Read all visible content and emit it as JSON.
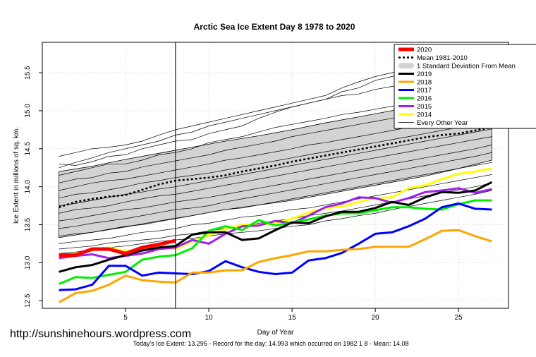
{
  "chart_data": {
    "type": "line",
    "title": "Arctic Sea Ice Extent Day 8 1978 to 2020",
    "xlabel": "Day of Year",
    "ylabel": "Ice Extent in millions of sq. km.",
    "xlim": [
      0,
      28
    ],
    "ylim": [
      12.4,
      15.9
    ],
    "xticks": [
      5,
      10,
      15,
      20,
      25
    ],
    "yticks": [
      12.5,
      13.0,
      13.5,
      14.0,
      14.5,
      15.0,
      15.5
    ],
    "ytick_labels": [
      "12.5",
      "13.0",
      "13.5",
      "14.0",
      "14.5",
      "15.0",
      "15.5"
    ],
    "current_day": 8,
    "std_band": {
      "name": "1 Standard Deviation From Mean",
      "x": [
        1,
        3,
        5,
        7,
        9,
        11,
        13,
        15,
        17,
        19,
        21,
        23,
        25,
        27
      ],
      "upper": [
        14.2,
        14.27,
        14.36,
        14.44,
        14.52,
        14.6,
        14.67,
        14.75,
        14.84,
        14.92,
        15.0,
        15.08,
        15.16,
        15.27
      ],
      "lower": [
        13.33,
        13.4,
        13.47,
        13.55,
        13.62,
        13.7,
        13.76,
        13.82,
        13.9,
        13.98,
        14.06,
        14.14,
        14.24,
        14.35
      ]
    },
    "mean_series": {
      "name": "Mean 1981-2010",
      "x": [
        1,
        2,
        3,
        4,
        5,
        6,
        7,
        8,
        9,
        10,
        11,
        12,
        13,
        14,
        15,
        16,
        17,
        18,
        19,
        20,
        21,
        22,
        23,
        24,
        25,
        26,
        27
      ],
      "values": [
        13.73,
        13.8,
        13.84,
        13.87,
        13.89,
        13.96,
        14.03,
        14.08,
        14.1,
        14.12,
        14.15,
        14.2,
        14.24,
        14.28,
        14.33,
        14.37,
        14.41,
        14.45,
        14.49,
        14.53,
        14.57,
        14.61,
        14.65,
        14.68,
        14.7,
        14.74,
        14.78
      ]
    },
    "background_series": [
      {
        "name": "bg-1",
        "values": [
          14.3,
          14.28,
          14.33,
          14.4,
          14.42,
          14.5,
          14.55,
          14.6,
          14.62,
          14.7,
          14.75,
          14.8,
          14.9,
          14.98,
          15.05,
          15.1,
          15.15,
          15.25,
          15.3,
          15.4,
          15.45,
          15.52,
          15.58,
          15.62,
          15.65,
          15.68,
          15.7
        ]
      },
      {
        "name": "bg-2",
        "values": [
          14.25,
          14.32,
          14.38,
          14.45,
          14.5,
          14.55,
          14.6,
          14.68,
          14.72,
          14.8,
          14.85,
          14.9,
          14.95,
          15.0,
          15.05,
          15.1,
          15.15,
          15.2,
          15.22,
          15.28,
          15.32,
          15.35,
          15.4,
          15.42,
          15.45,
          15.48,
          15.5
        ]
      },
      {
        "name": "bg-3",
        "values": [
          14.15,
          14.2,
          14.25,
          14.3,
          14.3,
          14.35,
          14.42,
          14.45,
          14.5,
          14.58,
          14.62,
          14.66,
          14.72,
          14.78,
          14.82,
          14.86,
          14.9,
          14.95,
          14.98,
          15.02,
          15.06,
          15.1,
          15.14,
          15.18,
          15.22,
          15.25,
          15.28
        ]
      },
      {
        "name": "bg-4",
        "values": [
          14.05,
          14.1,
          14.12,
          14.18,
          14.2,
          14.26,
          14.3,
          14.34,
          14.38,
          14.42,
          14.48,
          14.52,
          14.56,
          14.6,
          14.66,
          14.7,
          14.74,
          14.78,
          14.82,
          14.86,
          14.9,
          14.95,
          15.0,
          15.05,
          15.1,
          15.14,
          15.2
        ]
      },
      {
        "name": "bg-5",
        "values": [
          13.95,
          14.0,
          14.05,
          14.08,
          14.1,
          14.14,
          14.18,
          14.22,
          14.26,
          14.3,
          14.35,
          14.38,
          14.42,
          14.46,
          14.5,
          14.55,
          14.58,
          14.62,
          14.66,
          14.7,
          14.74,
          14.78,
          14.82,
          14.86,
          14.9,
          14.95,
          15.0
        ]
      },
      {
        "name": "bg-6",
        "values": [
          13.85,
          13.9,
          13.92,
          13.96,
          14.0,
          14.05,
          14.08,
          14.12,
          14.15,
          14.18,
          14.22,
          14.26,
          14.3,
          14.34,
          14.38,
          14.42,
          14.46,
          14.5,
          14.54,
          14.58,
          14.62,
          14.66,
          14.7,
          14.74,
          14.78,
          14.82,
          14.86
        ]
      },
      {
        "name": "bg-7",
        "values": [
          13.75,
          13.78,
          13.82,
          13.86,
          13.9,
          13.93,
          13.97,
          14.0,
          14.04,
          14.08,
          14.12,
          14.16,
          14.2,
          14.24,
          14.28,
          14.32,
          14.36,
          14.4,
          14.44,
          14.48,
          14.52,
          14.56,
          14.6,
          14.64,
          14.68,
          14.72,
          14.76
        ]
      },
      {
        "name": "bg-8",
        "values": [
          13.65,
          13.7,
          13.72,
          13.75,
          13.8,
          13.84,
          13.88,
          13.9,
          13.94,
          13.98,
          14.02,
          14.06,
          14.1,
          14.14,
          14.18,
          14.22,
          14.26,
          14.3,
          14.34,
          14.38,
          14.42,
          14.46,
          14.5,
          14.54,
          14.58,
          14.62,
          14.66
        ]
      },
      {
        "name": "bg-9",
        "values": [
          13.55,
          13.58,
          13.62,
          13.66,
          13.7,
          13.72,
          13.76,
          13.8,
          13.83,
          13.86,
          13.9,
          13.94,
          13.98,
          14.02,
          14.06,
          14.1,
          14.14,
          14.18,
          14.22,
          14.26,
          14.3,
          14.34,
          14.38,
          14.42,
          14.46,
          14.5,
          14.55
        ]
      },
      {
        "name": "bg-10",
        "values": [
          13.45,
          13.48,
          13.52,
          13.55,
          13.58,
          13.62,
          13.66,
          13.7,
          13.72,
          13.75,
          13.8,
          13.84,
          13.88,
          13.92,
          13.96,
          14.0,
          14.04,
          14.08,
          14.12,
          14.16,
          14.2,
          14.24,
          14.28,
          14.32,
          14.36,
          14.4,
          14.45
        ]
      },
      {
        "name": "bg-11",
        "values": [
          13.35,
          13.38,
          13.4,
          13.44,
          13.48,
          13.5,
          13.54,
          13.58,
          13.62,
          13.66,
          13.7,
          13.72,
          13.76,
          13.8,
          13.84,
          13.88,
          13.92,
          13.96,
          14.0,
          14.04,
          14.08,
          14.12,
          14.16,
          14.2,
          14.24,
          14.28,
          14.32
        ]
      },
      {
        "name": "bg-12",
        "values": [
          13.25,
          13.28,
          13.3,
          13.32,
          13.36,
          13.4,
          13.42,
          13.45,
          13.5,
          13.52,
          13.56,
          13.6,
          13.62,
          13.66,
          13.7,
          13.72,
          13.76,
          13.8,
          13.84,
          13.88,
          13.92,
          13.96,
          14.0,
          14.04,
          14.08,
          14.12,
          14.16
        ]
      },
      {
        "name": "bg-13",
        "values": [
          13.18,
          13.2,
          13.22,
          13.26,
          13.28,
          13.3,
          13.32,
          13.36,
          13.38,
          13.42,
          13.45,
          13.48,
          13.52,
          13.55,
          13.58,
          13.62,
          13.65,
          13.68,
          13.72,
          13.76,
          13.8,
          13.84,
          13.88,
          13.92,
          13.96,
          14.0,
          14.05
        ]
      },
      {
        "name": "bg-14",
        "values": [
          13.12,
          13.14,
          13.18,
          13.2,
          13.22,
          13.25,
          13.28,
          13.3,
          13.32,
          13.35,
          13.38,
          13.4,
          13.42,
          13.45,
          13.48,
          13.5,
          13.55,
          13.58,
          13.62,
          13.65,
          13.7,
          13.74,
          13.78,
          13.82,
          13.86,
          13.9,
          13.95
        ]
      },
      {
        "name": "bg-15",
        "values": [
          14.4,
          14.45,
          14.5,
          14.52,
          14.55,
          14.6,
          14.68,
          14.75,
          14.8,
          14.85,
          14.9,
          14.95,
          15.0,
          15.05,
          15.1,
          15.15,
          15.2,
          15.3,
          15.38,
          15.45,
          15.5,
          15.55,
          15.6,
          15.64,
          15.66,
          15.68,
          15.7
        ]
      }
    ],
    "series": [
      {
        "name": "2020",
        "color": "#ff0000",
        "x": [
          1,
          2,
          3,
          4,
          5,
          6,
          7,
          8
        ],
        "values": [
          13.1,
          13.1,
          13.18,
          13.18,
          13.12,
          13.2,
          13.24,
          13.29
        ]
      },
      {
        "name": "2019",
        "color": "#000000",
        "x": [
          1,
          2,
          3,
          4,
          5,
          6,
          7,
          8,
          9,
          10,
          11,
          12,
          13,
          14,
          15,
          16,
          17,
          18,
          19,
          20,
          21,
          22,
          23,
          24,
          25,
          26,
          27
        ],
        "values": [
          12.88,
          12.94,
          12.97,
          13.04,
          13.1,
          13.16,
          13.2,
          13.22,
          13.37,
          13.4,
          13.4,
          13.3,
          13.32,
          13.43,
          13.53,
          13.52,
          13.61,
          13.67,
          13.67,
          13.72,
          13.8,
          13.76,
          13.86,
          13.93,
          13.92,
          13.95,
          14.06
        ]
      },
      {
        "name": "2018",
        "color": "#ffa500",
        "x": [
          1,
          2,
          3,
          4,
          5,
          6,
          7,
          8,
          9,
          10,
          11,
          12,
          13,
          14,
          15,
          16,
          17,
          18,
          19,
          20,
          21,
          22,
          23,
          24,
          25,
          26,
          27
        ],
        "values": [
          12.48,
          12.6,
          12.63,
          12.71,
          12.83,
          12.77,
          12.75,
          12.74,
          12.87,
          12.87,
          12.9,
          12.9,
          13.01,
          13.06,
          13.1,
          13.15,
          13.15,
          13.17,
          13.18,
          13.21,
          13.21,
          13.21,
          13.31,
          13.42,
          13.43,
          13.35,
          13.28
        ]
      },
      {
        "name": "2017",
        "color": "#0000ff",
        "x": [
          1,
          2,
          3,
          4,
          5,
          6,
          7,
          8,
          9,
          10,
          11,
          12,
          13,
          14,
          15,
          16,
          17,
          18,
          19,
          20,
          21,
          22,
          23,
          24,
          25,
          26,
          27
        ],
        "values": [
          12.64,
          12.65,
          12.71,
          12.96,
          12.96,
          12.83,
          12.87,
          12.86,
          12.85,
          12.89,
          13.02,
          12.94,
          12.88,
          12.85,
          12.87,
          13.03,
          13.06,
          13.13,
          13.25,
          13.38,
          13.4,
          13.48,
          13.58,
          13.73,
          13.78,
          13.71,
          13.7
        ]
      },
      {
        "name": "2016",
        "color": "#00ee00",
        "x": [
          1,
          2,
          3,
          4,
          5,
          6,
          7,
          8,
          9,
          10,
          11,
          12,
          13,
          14,
          15,
          16,
          17,
          18,
          19,
          20,
          21,
          22,
          23,
          24,
          25,
          26,
          27
        ],
        "values": [
          12.72,
          12.81,
          12.8,
          12.84,
          12.88,
          13.04,
          13.08,
          13.1,
          13.19,
          13.42,
          13.48,
          13.43,
          13.56,
          13.49,
          13.53,
          13.57,
          13.62,
          13.65,
          13.65,
          13.69,
          13.73,
          13.73,
          13.71,
          13.7,
          13.77,
          13.82,
          13.82
        ]
      },
      {
        "name": "2015",
        "color": "#a020f0",
        "x": [
          1,
          2,
          3,
          4,
          5,
          6,
          7,
          8,
          9,
          10,
          11,
          12,
          13,
          14,
          15,
          16,
          17,
          18,
          19,
          20,
          21,
          22,
          23,
          24,
          25,
          26,
          27
        ],
        "values": [
          13.06,
          13.09,
          13.11,
          13.06,
          13.09,
          13.12,
          13.18,
          13.2,
          13.3,
          13.25,
          13.38,
          13.48,
          13.49,
          13.55,
          13.52,
          13.62,
          13.73,
          13.78,
          13.86,
          13.85,
          13.79,
          13.85,
          13.93,
          13.95,
          13.98,
          13.92,
          13.97
        ]
      },
      {
        "name": "2014",
        "color": "#ffff00",
        "x": [
          1,
          2,
          3,
          4,
          5,
          6,
          7,
          8,
          9,
          10,
          11,
          12,
          13,
          14,
          15,
          16,
          17,
          18,
          19,
          20,
          21,
          22,
          23,
          24,
          25,
          26,
          27
        ],
        "values": [
          13.08,
          13.12,
          13.16,
          13.2,
          13.15,
          13.18,
          13.2,
          13.18,
          13.28,
          13.36,
          13.44,
          13.5,
          13.5,
          13.52,
          13.58,
          13.66,
          13.72,
          13.74,
          13.8,
          13.85,
          13.86,
          13.98,
          14.02,
          14.1,
          14.17,
          14.2,
          14.24
        ]
      }
    ],
    "legend": {
      "position": "top-right",
      "entries": [
        {
          "label": "2020",
          "color": "#ff0000",
          "style": "thick"
        },
        {
          "label": "Mean 1981-2010",
          "color": "#000000",
          "style": "dotted"
        },
        {
          "label": "1 Standard Deviation From Mean",
          "color": "#d3d3d3",
          "style": "band"
        },
        {
          "label": "2019",
          "color": "#000000",
          "style": "solid"
        },
        {
          "label": "2018",
          "color": "#ffa500",
          "style": "solid"
        },
        {
          "label": "2017",
          "color": "#0000ff",
          "style": "solid"
        },
        {
          "label": "2016",
          "color": "#00ee00",
          "style": "solid"
        },
        {
          "label": "2015",
          "color": "#a020f0",
          "style": "solid"
        },
        {
          "label": "2014",
          "color": "#ffff00",
          "style": "solid"
        },
        {
          "label": "Every Other Year",
          "color": "#000000",
          "style": "thin"
        }
      ]
    },
    "watermark": "http://sunshinehours.wordpress.com",
    "footer": "Today's Ice Extent: 13.295  - Record for the day: 14.993 which occurred on 1982 1 8  - Mean: 14.08"
  }
}
